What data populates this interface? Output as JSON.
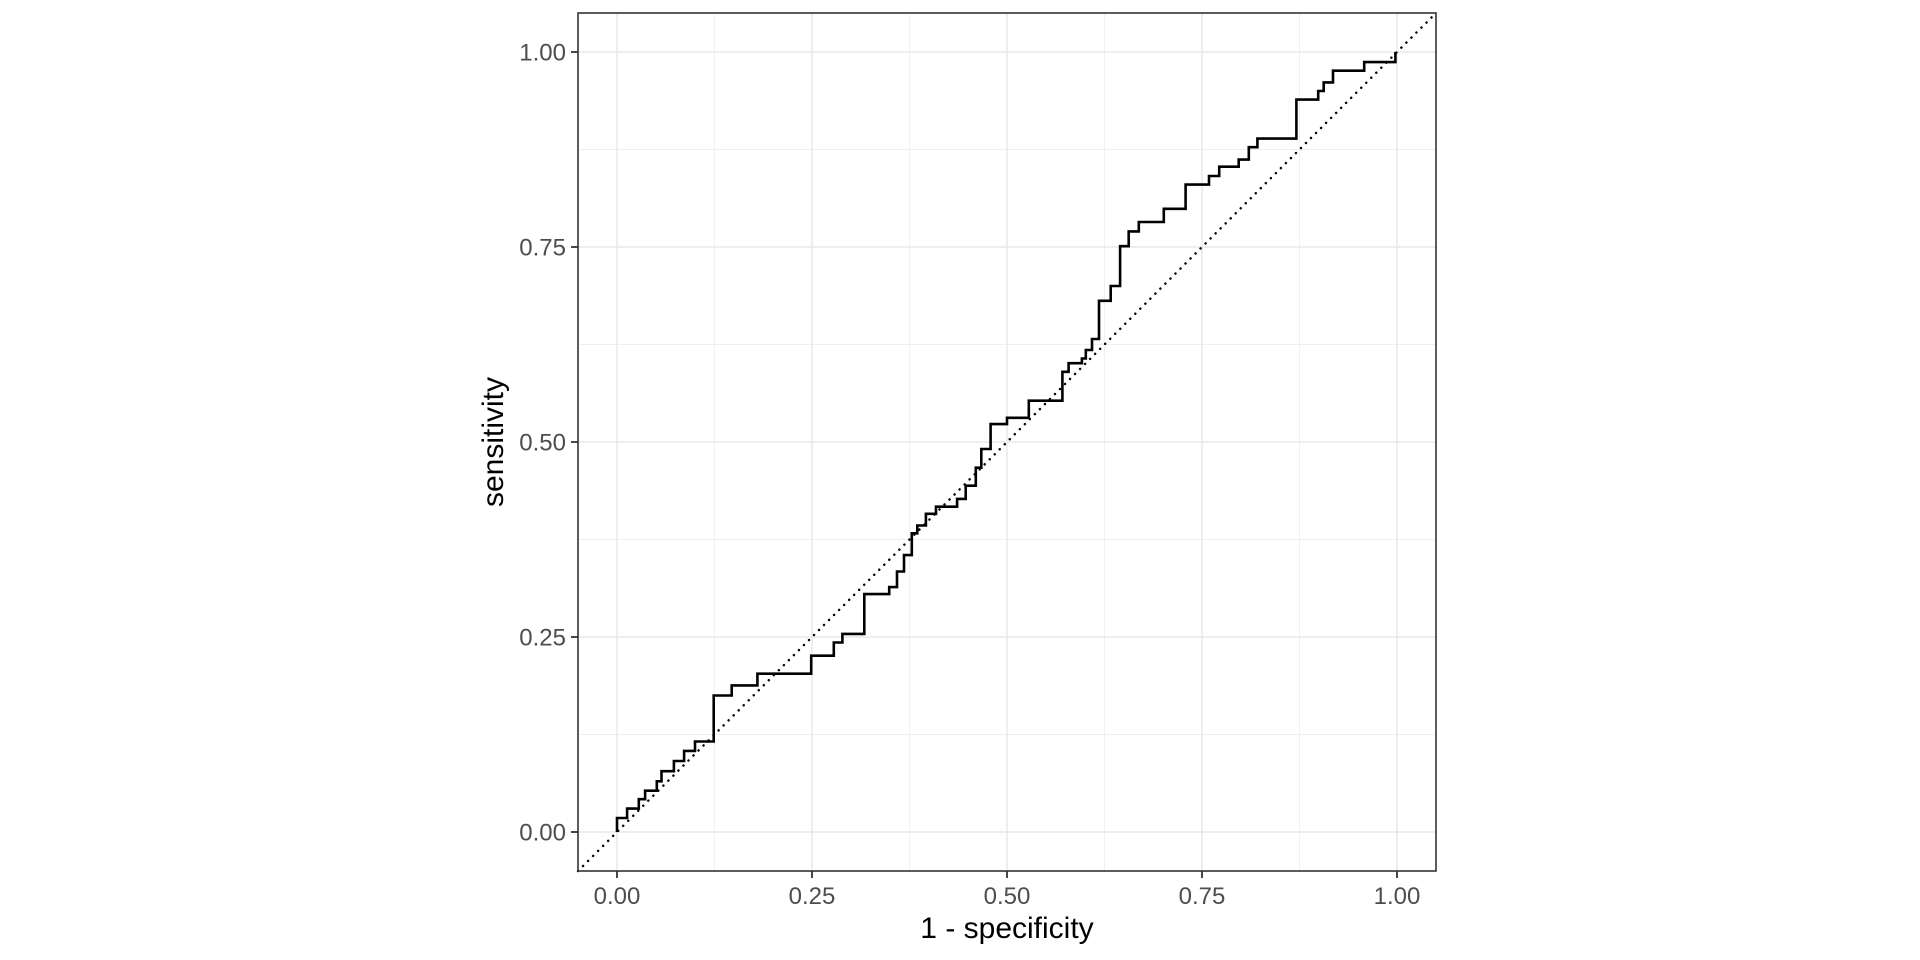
{
  "figure": {
    "background_color": "#ffffff"
  },
  "chart_data": {
    "type": "line",
    "title": "",
    "xlabel": "1 - specificity",
    "ylabel": "sensitivity",
    "xlim": [
      0,
      1
    ],
    "ylim": [
      0,
      1
    ],
    "expansion": 0.05,
    "grid": true,
    "legend": "none",
    "x_ticks": {
      "values": [
        0,
        0.25,
        0.5,
        0.75,
        1
      ],
      "labels": [
        "0.00",
        "0.25",
        "0.50",
        "0.75",
        "1.00"
      ]
    },
    "y_ticks": {
      "values": [
        0,
        0.25,
        0.5,
        0.75,
        1
      ],
      "labels": [
        "0.00",
        "0.25",
        "0.50",
        "0.75",
        "1.00"
      ]
    },
    "x_minor_ticks": [
      0.125,
      0.375,
      0.625,
      0.875
    ],
    "y_minor_ticks": [
      0.125,
      0.375,
      0.625,
      0.875
    ],
    "colors": {
      "panel_background": "#ffffff",
      "panel_border": "#333333",
      "major_grid": "#e8e8e8",
      "minor_grid": "#efefef",
      "tick_mark": "#333333",
      "tick_label": "#4d4d4d",
      "axis_title": "#000000",
      "curve": "#000000",
      "reference_line": "#000000"
    },
    "series": [
      {
        "name": "roc_curve",
        "style": "step-solid",
        "color": "#000000",
        "width": 2.6,
        "points": [
          [
            0.0,
            0.0
          ],
          [
            0.0,
            0.018
          ],
          [
            0.013,
            0.018
          ],
          [
            0.013,
            0.03
          ],
          [
            0.028,
            0.03
          ],
          [
            0.028,
            0.042
          ],
          [
            0.036,
            0.042
          ],
          [
            0.036,
            0.053
          ],
          [
            0.051,
            0.053
          ],
          [
            0.051,
            0.065
          ],
          [
            0.057,
            0.065
          ],
          [
            0.057,
            0.078
          ],
          [
            0.073,
            0.078
          ],
          [
            0.073,
            0.091
          ],
          [
            0.086,
            0.091
          ],
          [
            0.086,
            0.104
          ],
          [
            0.1,
            0.104
          ],
          [
            0.1,
            0.116
          ],
          [
            0.124,
            0.116
          ],
          [
            0.124,
            0.175
          ],
          [
            0.147,
            0.175
          ],
          [
            0.147,
            0.188
          ],
          [
            0.18,
            0.188
          ],
          [
            0.18,
            0.203
          ],
          [
            0.249,
            0.203
          ],
          [
            0.249,
            0.226
          ],
          [
            0.278,
            0.226
          ],
          [
            0.278,
            0.243
          ],
          [
            0.289,
            0.243
          ],
          [
            0.289,
            0.254
          ],
          [
            0.317,
            0.254
          ],
          [
            0.317,
            0.305
          ],
          [
            0.349,
            0.305
          ],
          [
            0.349,
            0.314
          ],
          [
            0.359,
            0.314
          ],
          [
            0.359,
            0.334
          ],
          [
            0.368,
            0.334
          ],
          [
            0.368,
            0.355
          ],
          [
            0.378,
            0.355
          ],
          [
            0.378,
            0.383
          ],
          [
            0.385,
            0.383
          ],
          [
            0.385,
            0.393
          ],
          [
            0.396,
            0.393
          ],
          [
            0.396,
            0.408
          ],
          [
            0.409,
            0.408
          ],
          [
            0.409,
            0.417
          ],
          [
            0.436,
            0.417
          ],
          [
            0.436,
            0.427
          ],
          [
            0.447,
            0.427
          ],
          [
            0.447,
            0.444
          ],
          [
            0.46,
            0.444
          ],
          [
            0.46,
            0.467
          ],
          [
            0.467,
            0.467
          ],
          [
            0.467,
            0.491
          ],
          [
            0.479,
            0.491
          ],
          [
            0.479,
            0.523
          ],
          [
            0.5,
            0.523
          ],
          [
            0.5,
            0.531
          ],
          [
            0.528,
            0.531
          ],
          [
            0.528,
            0.553
          ],
          [
            0.571,
            0.553
          ],
          [
            0.571,
            0.59
          ],
          [
            0.579,
            0.59
          ],
          [
            0.579,
            0.601
          ],
          [
            0.596,
            0.601
          ],
          [
            0.596,
            0.607
          ],
          [
            0.601,
            0.607
          ],
          [
            0.601,
            0.618
          ],
          [
            0.609,
            0.618
          ],
          [
            0.609,
            0.632
          ],
          [
            0.618,
            0.632
          ],
          [
            0.618,
            0.681
          ],
          [
            0.633,
            0.681
          ],
          [
            0.633,
            0.7
          ],
          [
            0.645,
            0.7
          ],
          [
            0.645,
            0.751
          ],
          [
            0.656,
            0.751
          ],
          [
            0.656,
            0.77
          ],
          [
            0.669,
            0.77
          ],
          [
            0.669,
            0.782
          ],
          [
            0.701,
            0.782
          ],
          [
            0.701,
            0.799
          ],
          [
            0.729,
            0.799
          ],
          [
            0.729,
            0.83
          ],
          [
            0.759,
            0.83
          ],
          [
            0.759,
            0.841
          ],
          [
            0.772,
            0.841
          ],
          [
            0.772,
            0.853
          ],
          [
            0.797,
            0.853
          ],
          [
            0.797,
            0.862
          ],
          [
            0.81,
            0.862
          ],
          [
            0.81,
            0.878
          ],
          [
            0.821,
            0.878
          ],
          [
            0.821,
            0.889
          ],
          [
            0.871,
            0.889
          ],
          [
            0.871,
            0.939
          ],
          [
            0.899,
            0.939
          ],
          [
            0.899,
            0.95
          ],
          [
            0.906,
            0.95
          ],
          [
            0.906,
            0.961
          ],
          [
            0.918,
            0.961
          ],
          [
            0.918,
            0.976
          ],
          [
            0.958,
            0.976
          ],
          [
            0.958,
            0.987
          ],
          [
            0.998,
            0.987
          ],
          [
            0.998,
            1.0
          ]
        ]
      },
      {
        "name": "chance_diagonal",
        "style": "dotted",
        "color": "#000000",
        "width": 2.4,
        "points": [
          [
            -0.05,
            -0.05
          ],
          [
            1.05,
            1.05
          ]
        ]
      }
    ]
  }
}
